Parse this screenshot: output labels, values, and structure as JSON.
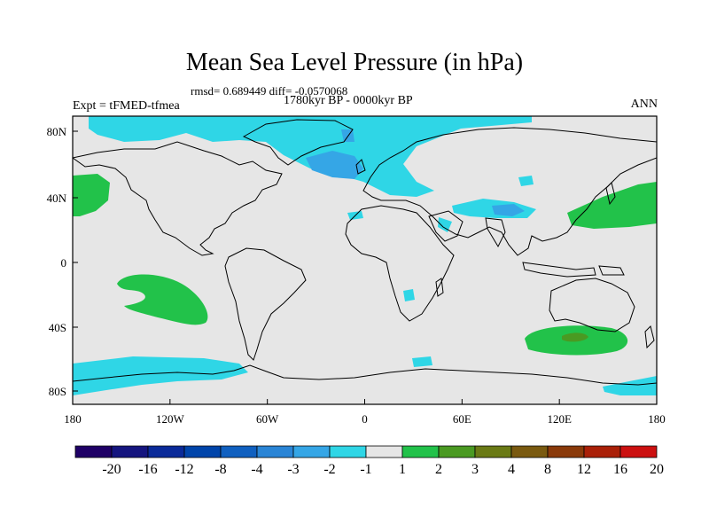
{
  "title": "Mean Sea Level Pressure (in hPa)",
  "stats_line": "rmsd= 0.689449 diff= -0.0570068",
  "period_line": "1780kyr BP - 0000kyr BP",
  "expt_label": "Expt = tFMED-tfmea",
  "season_label": "ANN",
  "map": {
    "lon_ticks": [
      "180",
      "120W",
      "60W",
      "0",
      "60E",
      "120E",
      "180"
    ],
    "lat_ticks": [
      "80N",
      "40N",
      "0",
      "40S",
      "80S"
    ]
  },
  "colorbar": {
    "labels": [
      "-20",
      "-16",
      "-12",
      "-8",
      "-4",
      "-3",
      "-2",
      "-1",
      "1",
      "2",
      "3",
      "4",
      "8",
      "12",
      "16",
      "20"
    ],
    "colors": [
      "#1f0066",
      "#15157f",
      "#0a2a99",
      "#0044aa",
      "#1060c0",
      "#2a85d6",
      "#35a6e6",
      "#2fd6e6",
      "#e6e6e6",
      "#22c24a",
      "#4a9a22",
      "#6a7a15",
      "#7a5a10",
      "#8a3a0a",
      "#aa2008",
      "#cc1010"
    ]
  }
}
